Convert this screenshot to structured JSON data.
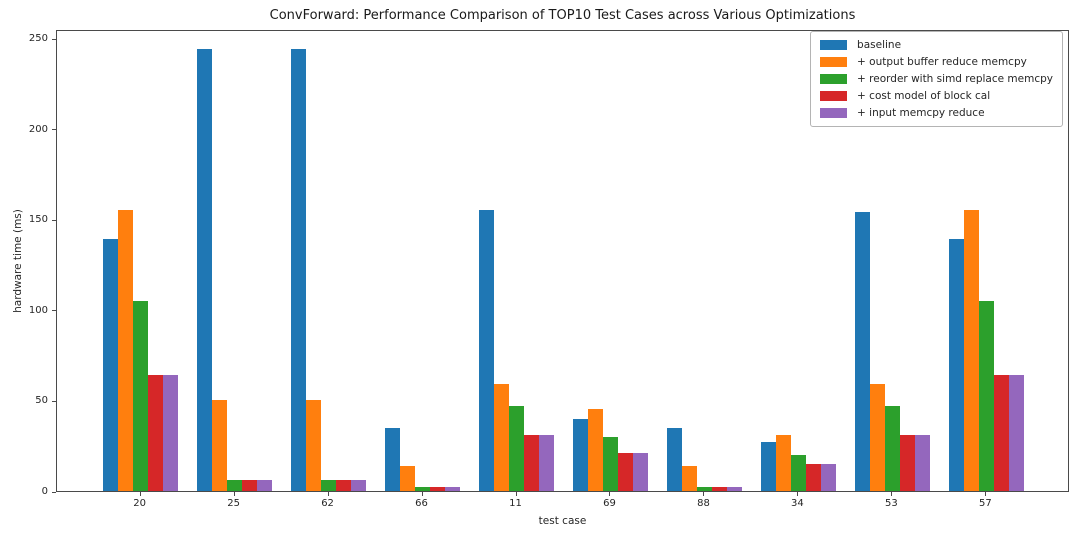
{
  "figure": {
    "background": "#ffffff",
    "spine_color": "#4a4a4a",
    "text_color": "#262626"
  },
  "chart_data": {
    "type": "bar",
    "title": "ConvForward: Performance Comparison of TOP10 Test Cases across Various Optimizations",
    "xlabel": "test case",
    "ylabel": "hardware time (ms)",
    "categories": [
      "20",
      "25",
      "62",
      "66",
      "11",
      "69",
      "88",
      "34",
      "53",
      "57"
    ],
    "series": [
      {
        "name": "baseline",
        "color": "#1f77b4",
        "values": [
          139,
          244,
          244,
          35,
          155,
          40,
          35,
          27,
          154,
          139
        ]
      },
      {
        "name": "+ output buffer reduce memcpy",
        "color": "#ff7f0e",
        "values": [
          155,
          50,
          50,
          14,
          59,
          45,
          14,
          31,
          59,
          155
        ]
      },
      {
        "name": "+ reorder with simd replace memcpy",
        "color": "#2ca02c",
        "values": [
          105,
          6,
          6,
          2,
          47,
          30,
          2,
          20,
          47,
          105
        ]
      },
      {
        "name": "+ cost model of block cal",
        "color": "#d62728",
        "values": [
          64,
          6,
          6,
          2,
          31,
          21,
          2,
          15,
          31,
          64
        ]
      },
      {
        "name": "+ input memcpy reduce",
        "color": "#9467bd",
        "values": [
          64,
          6,
          6,
          2,
          31,
          21,
          2,
          15,
          31,
          64
        ]
      }
    ],
    "yticks": [
      "0",
      "50",
      "100",
      "150",
      "200",
      "250"
    ],
    "ylim": [
      0,
      255
    ],
    "grid": false,
    "legend_position": "upper right"
  }
}
